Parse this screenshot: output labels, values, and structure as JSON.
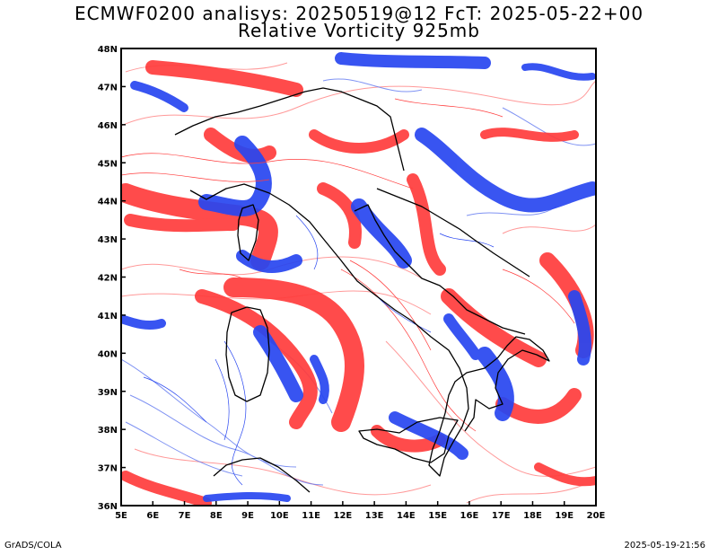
{
  "title_line1": "ECMWF0200 analisys: 20250519@12 FcT: 2025-05-22+00",
  "title_line2": "Relative Vorticity 925mb",
  "footer_left": "GrADS/COLA",
  "footer_right": "2025-05-19-21:56",
  "map": {
    "lon_range": [
      5,
      20
    ],
    "lat_range": [
      36,
      48
    ],
    "lon_ticks": [
      "5E",
      "6E",
      "7E",
      "8E",
      "9E",
      "10E",
      "11E",
      "12E",
      "13E",
      "14E",
      "15E",
      "16E",
      "17E",
      "18E",
      "19E",
      "20E"
    ],
    "lat_ticks": [
      "36N",
      "37N",
      "38N",
      "39N",
      "40N",
      "41N",
      "42N",
      "43N",
      "44N",
      "45N",
      "46N",
      "47N",
      "48N"
    ],
    "colors": {
      "positive_vorticity": "#ff3c3c",
      "negative_vorticity": "#2846f0",
      "coastline": "#000000",
      "frame": "#000000"
    }
  }
}
